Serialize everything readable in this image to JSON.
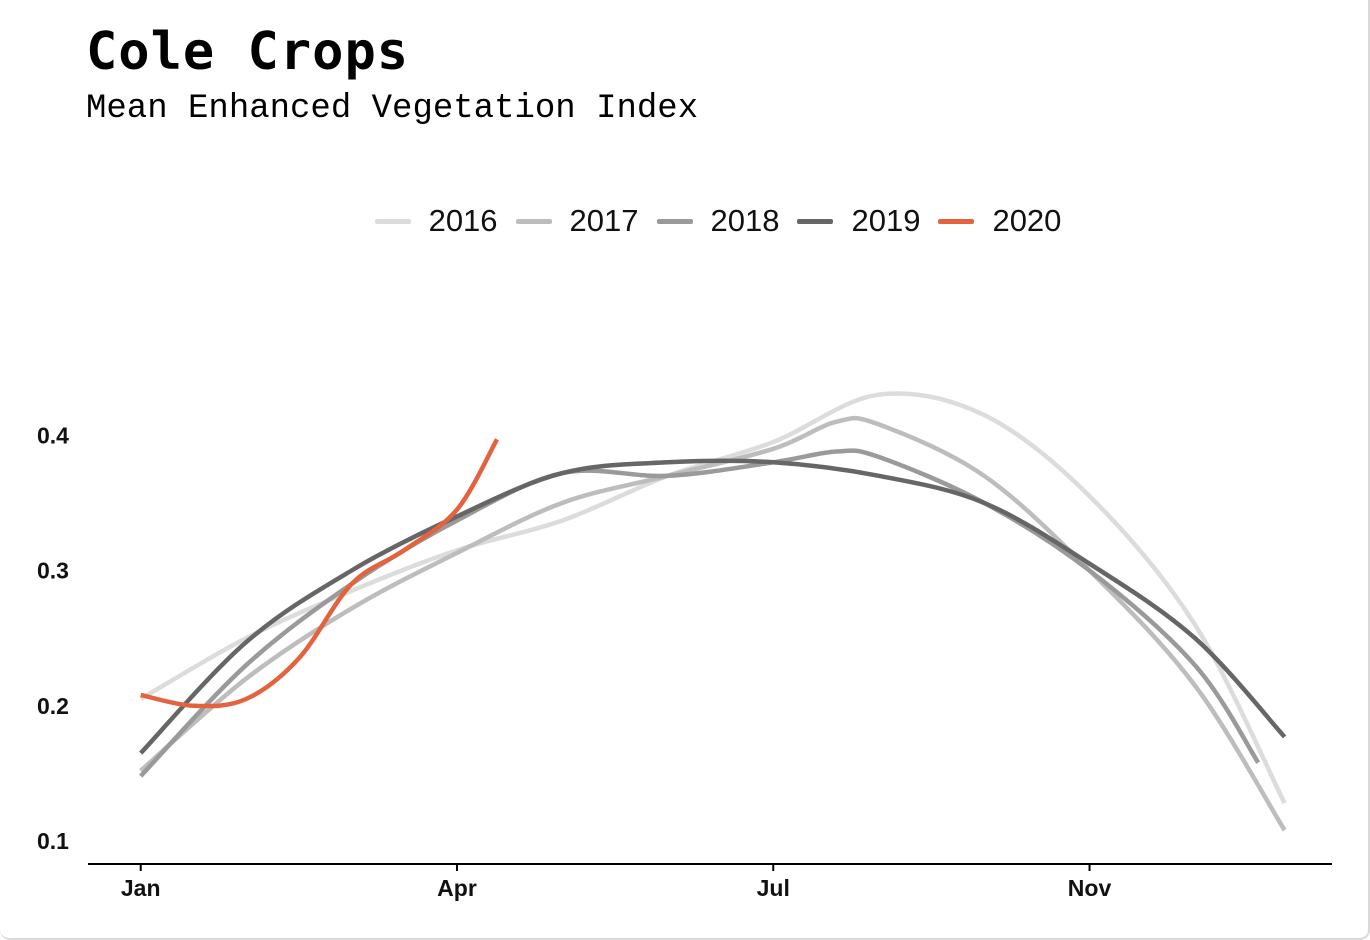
{
  "header": {
    "title": "Cole Crops",
    "subtitle": "Mean Enhanced Vegetation Index"
  },
  "chart_data": {
    "type": "line",
    "title": "Cole Crops",
    "subtitle": "Mean Enhanced Vegetation Index",
    "xlabel": "",
    "ylabel": "",
    "x_ticks": [
      "Jan",
      "Apr",
      "Jul",
      "Nov"
    ],
    "x_tick_values": [
      0,
      3,
      6,
      9
    ],
    "xlim": [
      -0.5,
      11.3
    ],
    "ylim": [
      0.083,
      0.5
    ],
    "y_ticks": [
      0.1,
      0.2,
      0.3,
      0.4
    ],
    "grid": false,
    "legend_position": "top",
    "series": [
      {
        "name": "2016",
        "color": "#dcdcdc",
        "points": [
          [
            0,
            0.205
          ],
          [
            1,
            0.25
          ],
          [
            2,
            0.285
          ],
          [
            3,
            0.315
          ],
          [
            4,
            0.337
          ],
          [
            5,
            0.37
          ],
          [
            6,
            0.395
          ],
          [
            7,
            0.43
          ],
          [
            8,
            0.415
          ],
          [
            9,
            0.355
          ],
          [
            10,
            0.26
          ],
          [
            10.85,
            0.128
          ]
        ]
      },
      {
        "name": "2017",
        "color": "#bdbdbd",
        "points": [
          [
            0,
            0.152
          ],
          [
            1,
            0.22
          ],
          [
            2,
            0.272
          ],
          [
            3,
            0.313
          ],
          [
            4,
            0.35
          ],
          [
            5,
            0.37
          ],
          [
            6,
            0.39
          ],
          [
            6.6,
            0.41
          ],
          [
            7,
            0.408
          ],
          [
            8,
            0.37
          ],
          [
            9,
            0.3
          ],
          [
            10,
            0.215
          ],
          [
            10.85,
            0.108
          ]
        ]
      },
      {
        "name": "2018",
        "color": "#9a9a9a",
        "points": [
          [
            0,
            0.148
          ],
          [
            1,
            0.23
          ],
          [
            2,
            0.29
          ],
          [
            3,
            0.337
          ],
          [
            4,
            0.372
          ],
          [
            5,
            0.37
          ],
          [
            6,
            0.38
          ],
          [
            6.6,
            0.388
          ],
          [
            7,
            0.384
          ],
          [
            8,
            0.35
          ],
          [
            9,
            0.3
          ],
          [
            10,
            0.23
          ],
          [
            10.6,
            0.158
          ]
        ]
      },
      {
        "name": "2019",
        "color": "#666666",
        "points": [
          [
            0,
            0.165
          ],
          [
            1,
            0.247
          ],
          [
            2,
            0.3
          ],
          [
            3,
            0.34
          ],
          [
            4,
            0.372
          ],
          [
            5,
            0.38
          ],
          [
            6,
            0.38
          ],
          [
            7,
            0.37
          ],
          [
            8,
            0.35
          ],
          [
            9,
            0.305
          ],
          [
            10,
            0.25
          ],
          [
            10.85,
            0.177
          ]
        ]
      },
      {
        "name": "2020",
        "color": "#e4633f",
        "points": [
          [
            0,
            0.208
          ],
          [
            0.5,
            0.2
          ],
          [
            1,
            0.205
          ],
          [
            1.5,
            0.235
          ],
          [
            2,
            0.29
          ],
          [
            2.5,
            0.315
          ],
          [
            3,
            0.345
          ],
          [
            3.38,
            0.397
          ]
        ]
      }
    ]
  }
}
